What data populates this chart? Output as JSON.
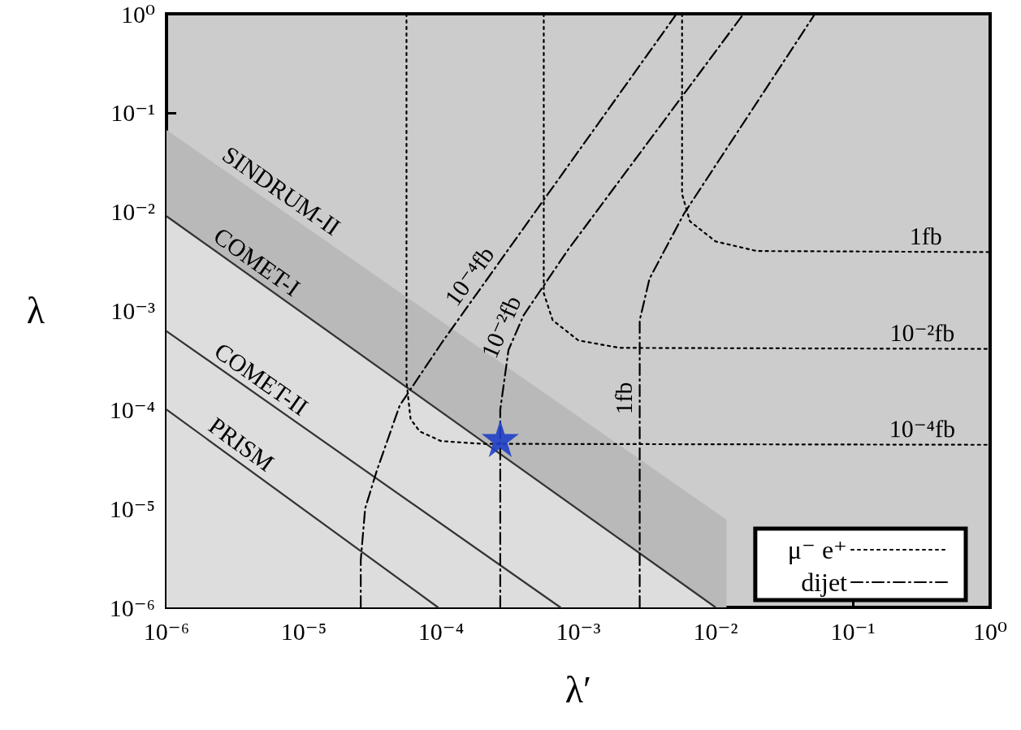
{
  "chart_data": {
    "type": "line",
    "xlabel": "λ′",
    "ylabel": "λ",
    "log": "xy",
    "legend": "bottom right",
    "marker": "none",
    "xlim": [
      1e-06,
      1
    ],
    "ylim": [
      1e-06,
      1
    ],
    "xticks": [
      {
        "value": 1e-06,
        "label": "10⁻⁶"
      },
      {
        "value": 1e-05,
        "label": "10⁻⁵"
      },
      {
        "value": 0.0001,
        "label": "10⁻⁴"
      },
      {
        "value": 0.001,
        "label": "10⁻³"
      },
      {
        "value": 0.01,
        "label": "10⁻²"
      },
      {
        "value": 0.1,
        "label": "10⁻¹"
      },
      {
        "value": 1,
        "label": "10⁰"
      }
    ],
    "yticks": [
      {
        "value": 1e-06,
        "label": "10⁻⁶"
      },
      {
        "value": 1e-05,
        "label": "10⁻⁵"
      },
      {
        "value": 0.0001,
        "label": "10⁻⁴"
      },
      {
        "value": 0.001,
        "label": "10⁻³"
      },
      {
        "value": 0.01,
        "label": "10⁻²"
      },
      {
        "value": 0.1,
        "label": "10⁻¹"
      },
      {
        "value": 1,
        "label": "10⁰"
      }
    ],
    "series": [
      {
        "type": "area",
        "color": "#b9b9b9",
        "x": [
          1e-06,
          0.012,
          0.012
        ],
        "values": [
          0.067,
          7.7e-06,
          1e-06
        ]
      },
      {
        "type": "area",
        "color": "#dddddd",
        "line_style": "solid",
        "x": [
          1e-06,
          0.01
        ],
        "values": [
          0.009,
          1e-06
        ]
      },
      {
        "color": "#333333",
        "line_style": "solid",
        "x": [
          1e-06,
          0.00074
        ],
        "values": [
          0.00062,
          1e-06
        ]
      },
      {
        "color": "#333333",
        "line_style": "solid",
        "x": [
          1e-06,
          9.5e-05
        ],
        "values": [
          0.0001,
          1e-06
        ]
      },
      {
        "name": "μ⁻ e⁺",
        "color": "#000000",
        "line_style": "dotted",
        "x": [
          5.6e-05,
          5.6e-05,
          6e-05,
          7e-05,
          0.0001,
          0.0002,
          1
        ],
        "values": [
          1,
          0.00019,
          8e-05,
          6e-05,
          4.8e-05,
          4.5e-05,
          4.4e-05
        ]
      },
      {
        "color": "#000000",
        "line_style": "dotted",
        "x": [
          0.00056,
          0.00056,
          0.00065,
          0.001,
          0.002,
          1
        ],
        "values": [
          1,
          0.0015,
          0.0008,
          0.0005,
          0.00042,
          0.00041
        ]
      },
      {
        "color": "#000000",
        "line_style": "dotted",
        "x": [
          0.0057,
          0.0057,
          0.0065,
          0.01,
          0.02,
          1
        ],
        "values": [
          1,
          0.015,
          0.008,
          0.005,
          0.004,
          0.0039
        ]
      },
      {
        "name": "dijet",
        "color": "#000000",
        "line_style": "dashdot",
        "x": [
          2.6e-05,
          2.6e-05,
          2.8e-05,
          3.4e-05,
          5e-05,
          0.000103,
          0.0052
        ],
        "values": [
          1e-06,
          3e-06,
          1e-05,
          2.4e-05,
          0.00011,
          0.00049,
          1
        ]
      },
      {
        "color": "#000000",
        "line_style": "dashdot",
        "x": [
          0.00027,
          0.00027,
          0.00031,
          0.0004,
          0.00085,
          0.016
        ],
        "values": [
          1e-06,
          0.0001,
          0.0004,
          0.0009,
          0.0042,
          1
        ]
      },
      {
        "color": "#000000",
        "line_style": "dashdot",
        "x": [
          0.0028,
          0.0028,
          0.0033,
          0.0059,
          0.053
        ],
        "values": [
          1e-06,
          0.0008,
          0.0021,
          0.0096,
          1
        ]
      },
      {
        "type": "scatter",
        "color": "#2040c8",
        "marker": "star",
        "x": [
          0.00027
        ],
        "values": [
          5.1e-05
        ]
      }
    ],
    "annotations": [
      {
        "text": "SINDRUM-II",
        "x": 5.9e-06,
        "y": 0.012
      },
      {
        "text": "COMET-I",
        "x": 3.9e-06,
        "y": 0.0023
      },
      {
        "text": "COMET-II",
        "x": 4.2e-06,
        "y": 0.00015
      },
      {
        "text": "PRISM",
        "x": 3e-06,
        "y": 3.3e-05
      },
      {
        "text": "10⁻⁴fb",
        "x": 0.0002,
        "y": 0.0018
      },
      {
        "text": "10⁻²fb",
        "x": 0.00035,
        "y": 0.00059
      },
      {
        "text": "1fb",
        "x": 0.0028,
        "y": 0.00013
      },
      {
        "text": "1fb",
        "x": 0.34,
        "y": 0.0039
      },
      {
        "text": "10⁻²fb",
        "x": 0.32,
        "y": 0.00041
      },
      {
        "text": "10⁻⁴fb",
        "x": 0.32,
        "y": 4.4e-05
      }
    ]
  }
}
